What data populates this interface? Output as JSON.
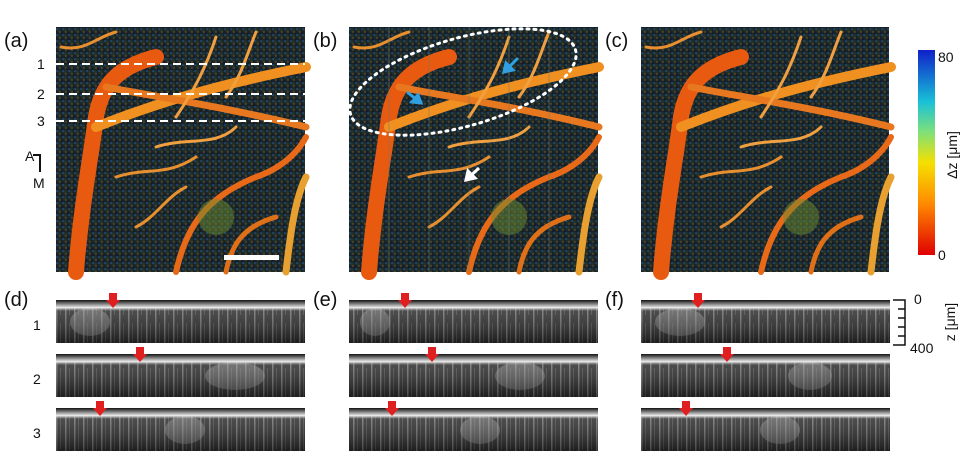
{
  "panels": {
    "top": [
      "(a)",
      "(b)",
      "(c)"
    ],
    "bottom": [
      "(d)",
      "(e)",
      "(f)"
    ]
  },
  "line_labels": [
    "1",
    "2",
    "3"
  ],
  "orientation": {
    "anterior": "A",
    "medial": "M"
  },
  "colorbar": {
    "max": "80",
    "min": "0",
    "label": "Δz [μm]"
  },
  "depth_scale": {
    "top": "0",
    "bottom": "400",
    "label": "z [μm]"
  },
  "row_labels": [
    "1",
    "2",
    "3"
  ]
}
